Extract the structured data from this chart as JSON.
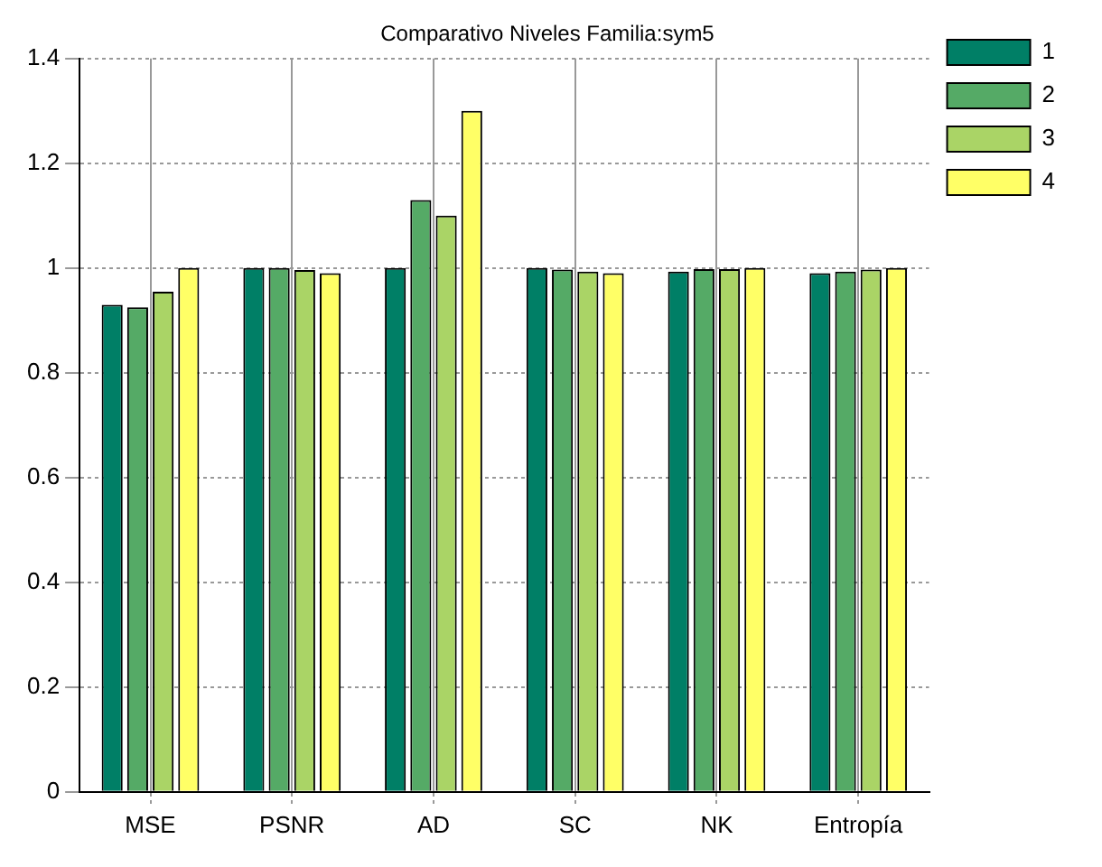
{
  "chart_data": {
    "type": "bar",
    "title": "Comparativo Niveles Familia:sym5",
    "categories": [
      "MSE",
      "PSNR",
      "AD",
      "SC",
      "NK",
      "Entropía"
    ],
    "series": [
      {
        "name": "1",
        "color": "#007f66",
        "values": [
          0.93,
          1.0,
          1.0,
          1.0,
          0.993,
          0.99
        ]
      },
      {
        "name": "2",
        "color": "#55aa66",
        "values": [
          0.925,
          1.0,
          1.13,
          0.997,
          0.998,
          0.993
        ]
      },
      {
        "name": "3",
        "color": "#aad466",
        "values": [
          0.955,
          0.996,
          1.1,
          0.993,
          0.998,
          0.997
        ]
      },
      {
        "name": "4",
        "color": "#ffff66",
        "values": [
          1.0,
          0.99,
          1.3,
          0.99,
          1.0,
          1.0
        ]
      }
    ],
    "ylim": [
      0,
      1.4
    ],
    "yticks": [
      0,
      0.2,
      0.4,
      0.6,
      0.8,
      1,
      1.2,
      1.4
    ],
    "grid": true,
    "legend": "top right"
  }
}
